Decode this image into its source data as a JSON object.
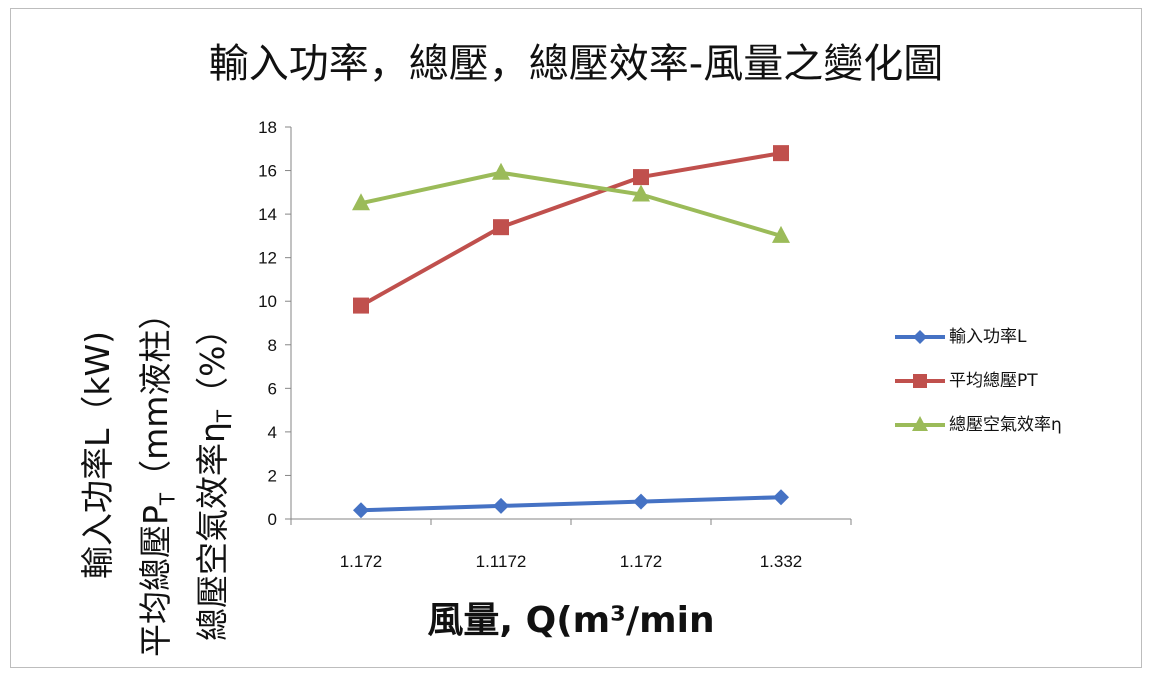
{
  "chart_data": {
    "type": "line",
    "title": "輸入功率，總壓，總壓效率-風量之變化圖",
    "xlabel": "風量, Q(m³/min",
    "ylabel_lines": [
      {
        "text": "輸入功率L（kW)",
        "sub": ""
      },
      {
        "text": "平均總壓P",
        "sub": "T",
        "suffix": "（mm液柱）"
      },
      {
        "text": "總壓空氣效率η",
        "sub": "T",
        "suffix": "（%）"
      }
    ],
    "categories": [
      "1.172",
      "1.1172",
      "1.172",
      "1.332"
    ],
    "ylim": [
      0,
      18
    ],
    "yticks": [
      0,
      2,
      4,
      6,
      8,
      10,
      12,
      14,
      16,
      18
    ],
    "grid": false,
    "legend_position": "right",
    "series": [
      {
        "name": "輸入功率L",
        "color": "#4572c4",
        "marker": "diamond",
        "values": [
          0.4,
          0.6,
          0.8,
          1.0
        ]
      },
      {
        "name": "平均總壓PT",
        "color": "#c0504d",
        "marker": "square",
        "values": [
          9.8,
          13.4,
          15.7,
          16.8
        ]
      },
      {
        "name": "總壓空氣效率η",
        "color": "#9bbb59",
        "marker": "triangle",
        "values": [
          14.5,
          15.9,
          14.9,
          13.0
        ]
      }
    ]
  }
}
